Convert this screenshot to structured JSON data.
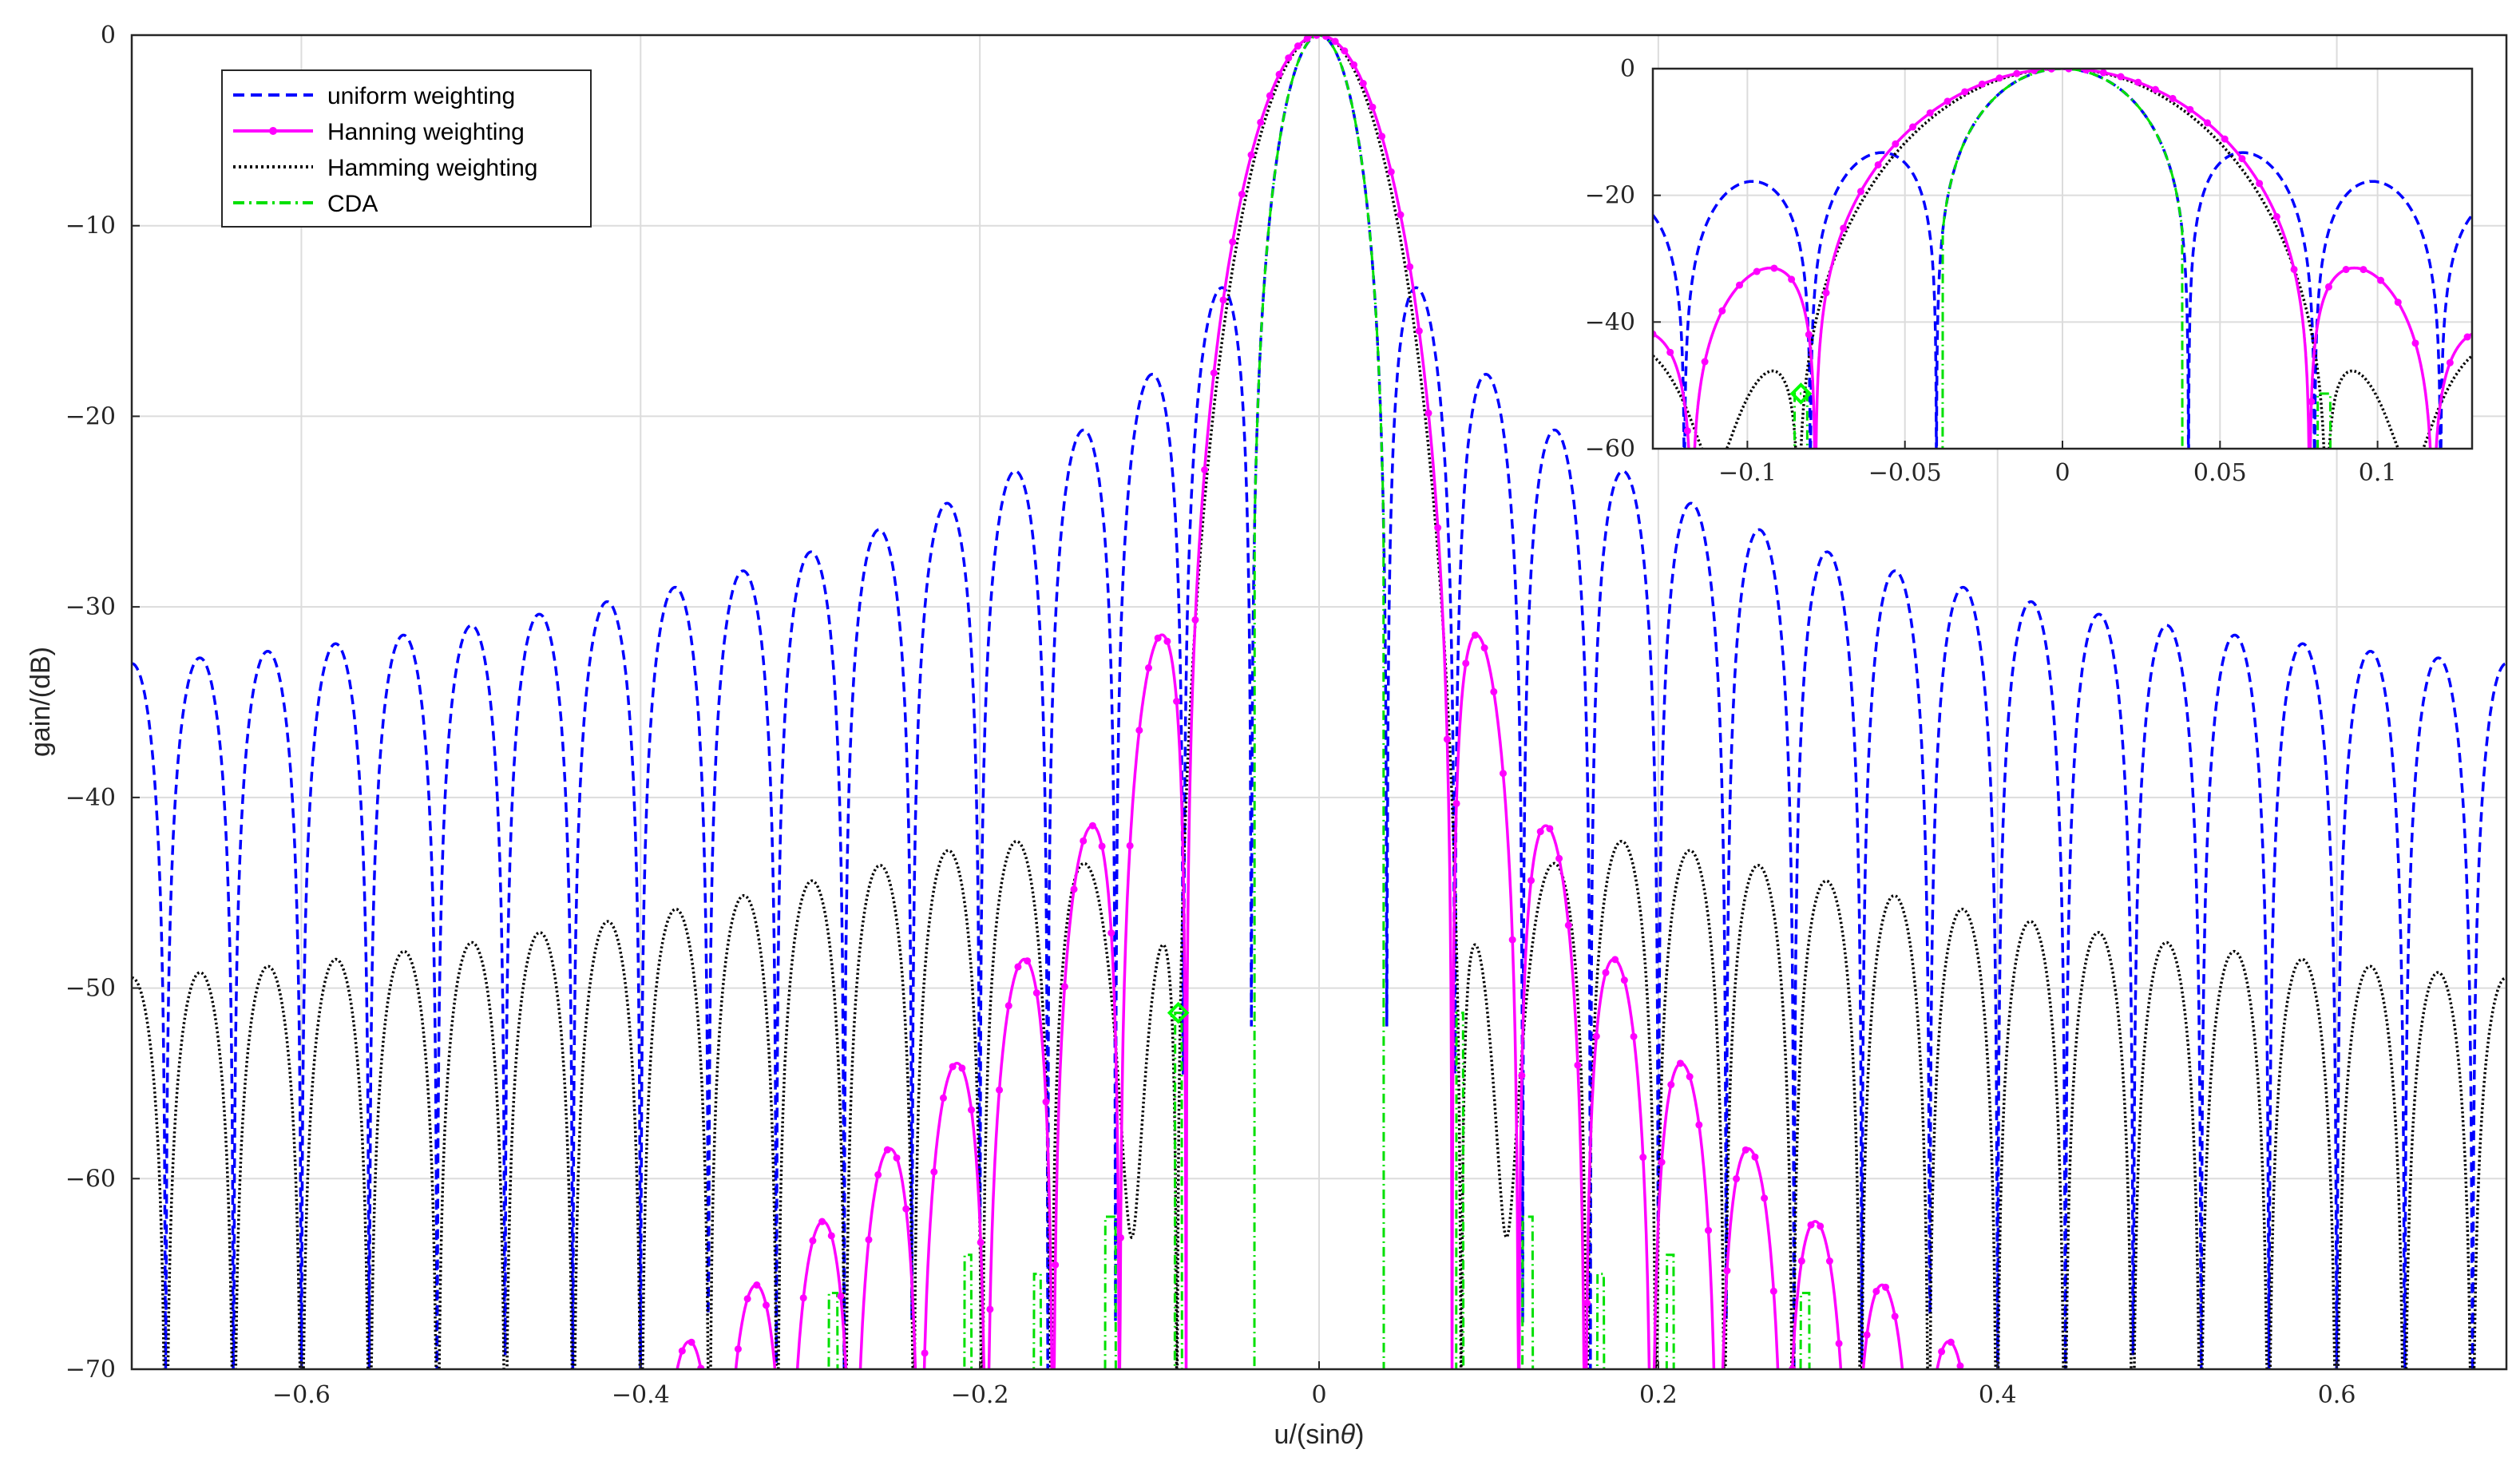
{
  "chart_data": [
    {
      "type": "line",
      "name": "main-plot",
      "xlabel_prefix": "u/(sin",
      "xlabel_symbol": "θ",
      "xlabel_suffix": ")",
      "ylabel": "gain/(dB)",
      "xlim": [
        -0.7,
        0.7
      ],
      "ylim": [
        -70,
        0
      ],
      "xticks": [
        -0.6,
        -0.4,
        -0.2,
        0,
        0.2,
        0.4,
        0.6
      ],
      "xtick_labels": [
        "−0.6",
        "−0.4",
        "−0.2",
        "0",
        "0.2",
        "0.4",
        "0.6"
      ],
      "yticks": [
        0,
        -10,
        -20,
        -30,
        -40,
        -50,
        -60,
        -70
      ],
      "ytick_labels": [
        "0",
        "−10",
        "−20",
        "−30",
        "−40",
        "−50",
        "−60",
        "−70"
      ],
      "grid": true,
      "legend_position": "top-left",
      "series": [
        {
          "name": "uniform weighting",
          "color": "#0000ff",
          "style": "dashed",
          "N": 50,
          "window": "uniform"
        },
        {
          "name": "Hanning weighting",
          "color": "#ff00ff",
          "style": "solid-dots",
          "N": 50,
          "window": "hanning"
        },
        {
          "name": "Hamming weighting",
          "color": "#000000",
          "style": "dotted",
          "N": 50,
          "window": "hamming"
        },
        {
          "name": "CDA",
          "color": "#00e000",
          "style": "dashdot",
          "N": 50,
          "window": "cda"
        }
      ],
      "marker": {
        "x": -0.083,
        "y": -51.3,
        "shape": "diamond",
        "color": "#00ff00"
      }
    },
    {
      "type": "line",
      "name": "inset-plot",
      "xlim": [
        -0.13,
        0.13
      ],
      "ylim": [
        -60,
        0
      ],
      "xticks": [
        -0.1,
        -0.05,
        0,
        0.05,
        0.1
      ],
      "xtick_labels": [
        "−0.1",
        "−0.05",
        "0",
        "0.05",
        "0.1"
      ],
      "yticks": [
        0,
        -20,
        -40,
        -60
      ],
      "ytick_labels": [
        "0",
        "−20",
        "−40",
        "−60"
      ],
      "grid": true,
      "marker": {
        "x": -0.083,
        "y": -51.3,
        "shape": "diamond",
        "color": "#00ff00"
      }
    }
  ]
}
